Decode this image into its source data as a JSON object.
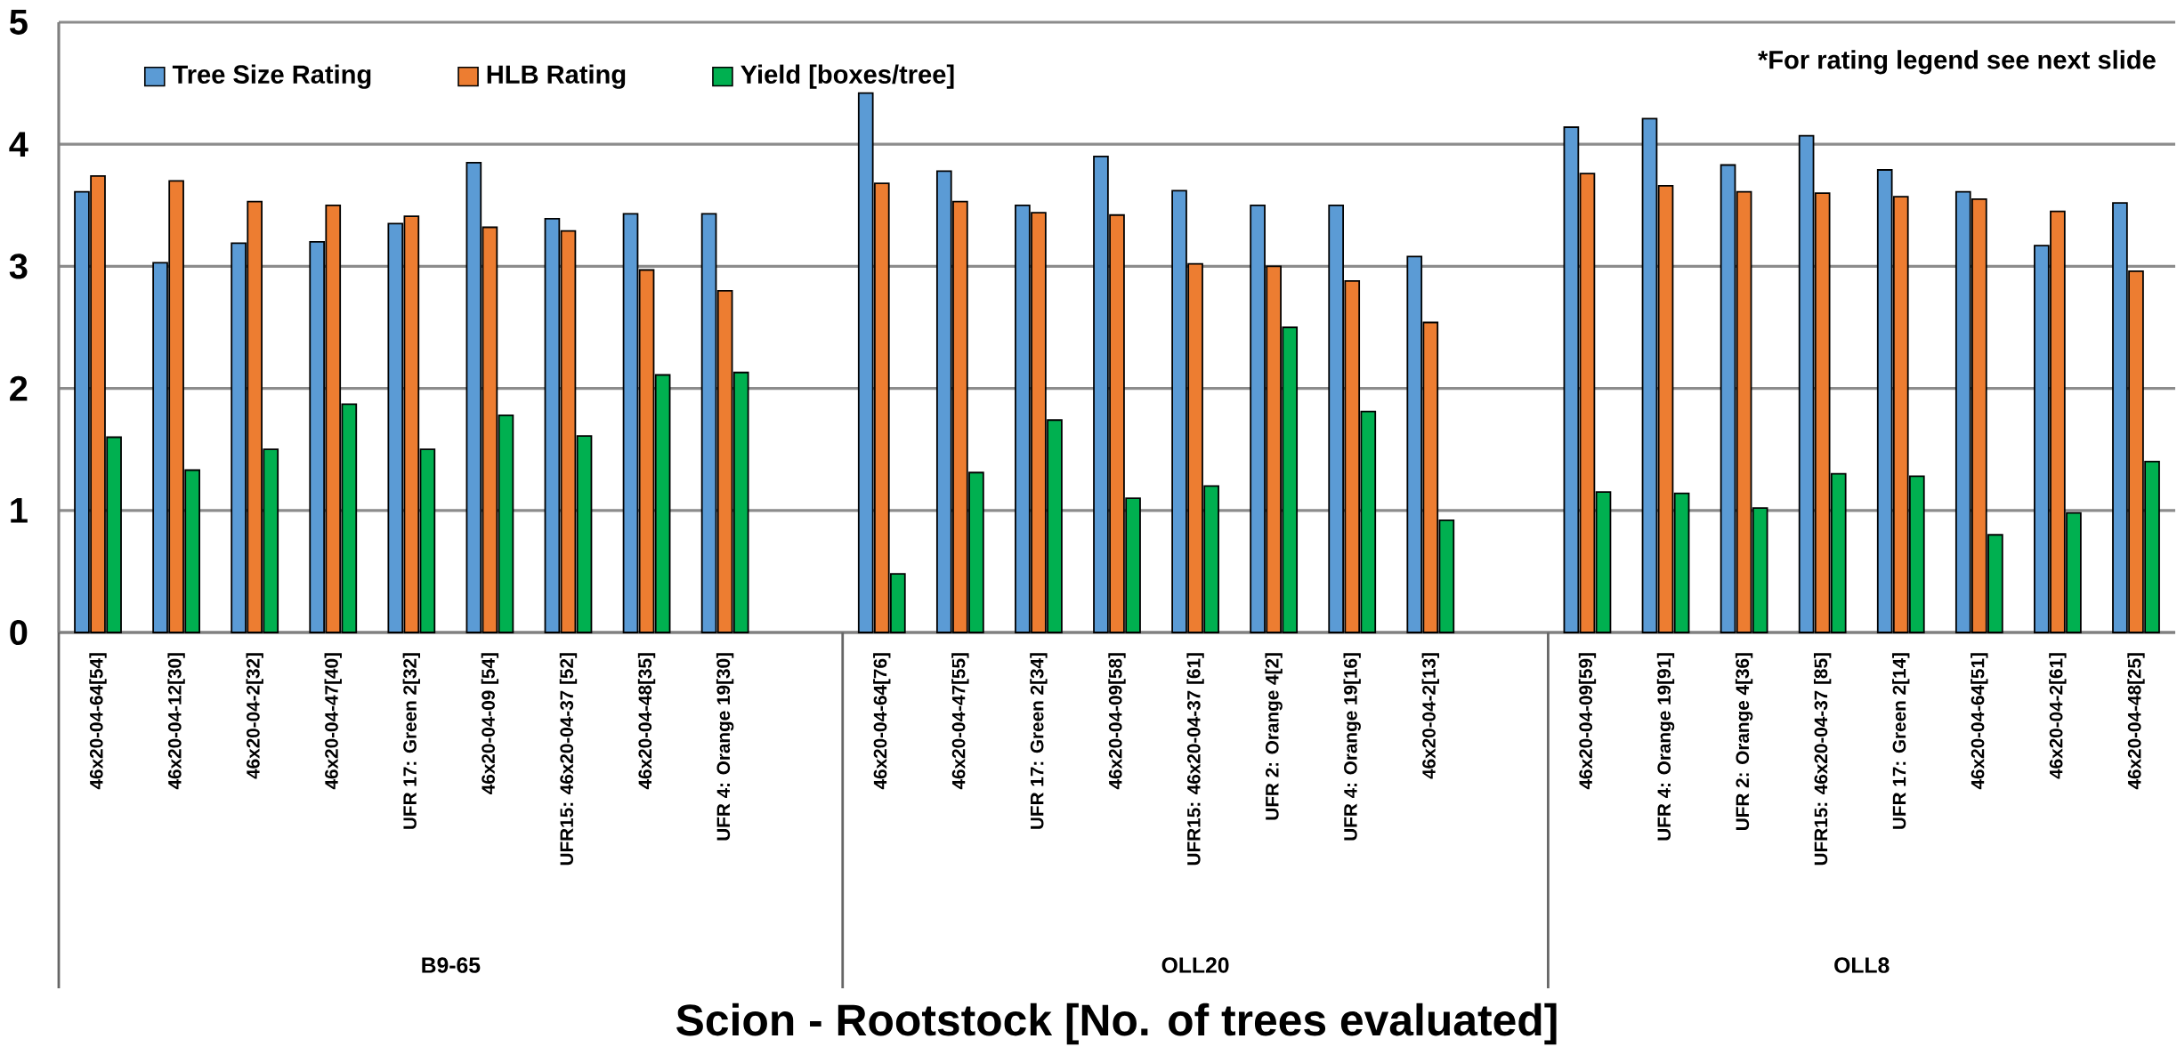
{
  "chart_data": {
    "type": "bar",
    "xlabel": "Scion - Rootstock [No. of trees evaluated]",
    "categories": [
      "46x20-04-64[54]",
      "46x20-04-12[30]",
      "46x20-04-2[32]",
      "46x20-04-47[40]",
      "UFR 17: Green 2[32]",
      "46x20-04-09 [54]",
      "UFR15: 46x20-04-37 [52]",
      "46x20-04-48[35]",
      "UFR 4: Orange 19[30]",
      null,
      "46x20-04-64[76]",
      "46x20-04-47[55]",
      "UFR 17: Green 2[34]",
      "46x20-04-09[58]",
      "UFR15: 46x20-04-37 [61]",
      "UFR 2: Orange 4[2]",
      "UFR 4: Orange 19[16]",
      "46x20-04-2[13]",
      null,
      "46x20-04-09[59]",
      "UFR 4: Orange 19[91]",
      "UFR 2: Orange 4[36]",
      "UFR15: 46x20-04-37 [85]",
      "UFR 17: Green 2[14]",
      "46x20-04-64[51]",
      "46x20-04-2[61]",
      "46x20-04-48[25]"
    ],
    "series": [
      {
        "name": "Tree Size Rating",
        "color": "#5b9bd5",
        "values": [
          3.61,
          3.03,
          3.19,
          3.2,
          3.35,
          3.85,
          3.39,
          3.43,
          3.43,
          null,
          4.42,
          3.78,
          3.5,
          3.9,
          3.62,
          3.5,
          3.5,
          3.08,
          null,
          4.14,
          4.21,
          3.83,
          4.07,
          3.79,
          3.61,
          3.17,
          3.52
        ]
      },
      {
        "name": "HLB Rating",
        "color": "#ed7d31",
        "values": [
          3.74,
          3.7,
          3.53,
          3.5,
          3.41,
          3.32,
          3.29,
          2.97,
          2.8,
          null,
          3.68,
          3.53,
          3.44,
          3.42,
          3.02,
          3.0,
          2.88,
          2.54,
          null,
          3.76,
          3.66,
          3.61,
          3.6,
          3.57,
          3.55,
          3.45,
          2.96
        ]
      },
      {
        "name": "Yield [boxes/tree]",
        "color": "#00b050",
        "values": [
          1.6,
          1.33,
          1.5,
          1.87,
          1.5,
          1.78,
          1.61,
          2.11,
          2.13,
          null,
          0.48,
          1.31,
          1.74,
          1.1,
          1.2,
          2.5,
          1.81,
          0.92,
          null,
          1.15,
          1.14,
          1.02,
          1.3,
          1.28,
          0.8,
          0.98,
          1.4
        ]
      }
    ],
    "annotations": [
      "*For rating legend see next slide",
      "B9-65",
      "OLL20",
      "OLL8"
    ],
    "ylim": [
      0,
      5
    ],
    "yticks": [
      0,
      1,
      2,
      3,
      4,
      5
    ],
    "grid": "y",
    "legend": "top left"
  }
}
